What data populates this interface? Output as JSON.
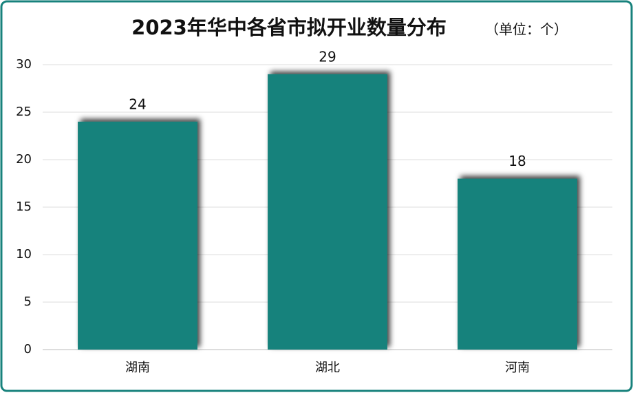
{
  "chart_data": {
    "type": "bar",
    "title": "2023年华中各省市拟开业数量分布",
    "subtitle": "（单位：个）",
    "categories": [
      "湖南",
      "湖北",
      "河南"
    ],
    "values": [
      24,
      29,
      18
    ],
    "color": "#17827c",
    "ylim": [
      0,
      30
    ],
    "yticks": [
      0,
      5,
      10,
      15,
      20,
      25,
      30
    ],
    "grid": true
  }
}
